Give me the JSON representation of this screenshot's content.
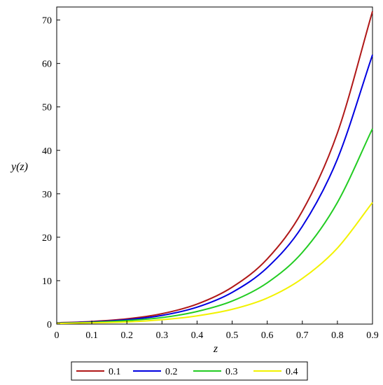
{
  "chart_data": {
    "type": "line",
    "xlabel": "z",
    "ylabel": "y(z)",
    "xlim": [
      0,
      0.9
    ],
    "ylim": [
      0,
      73
    ],
    "x_ticks": [
      "0",
      "0.1",
      "0.2",
      "0.3",
      "0.4",
      "0.5",
      "0.6",
      "0.7",
      "0.8",
      "0.9"
    ],
    "y_ticks": [
      "0",
      "10",
      "20",
      "30",
      "40",
      "50",
      "60",
      "70"
    ],
    "x": [
      0,
      0.1,
      0.2,
      0.3,
      0.4,
      0.5,
      0.6,
      0.7,
      0.8,
      0.9
    ],
    "series": [
      {
        "name": "0.1",
        "color": "#b01818",
        "values": [
          0.3,
          0.6,
          1.2,
          2.4,
          4.6,
          8.5,
          15,
          26,
          44,
          72
        ]
      },
      {
        "name": "0.2",
        "color": "#0000e0",
        "values": [
          0.25,
          0.5,
          1.0,
          2.0,
          3.9,
          7.3,
          13,
          22.5,
          38,
          62
        ]
      },
      {
        "name": "0.3",
        "color": "#22cc22",
        "values": [
          0.2,
          0.4,
          0.8,
          1.5,
          2.9,
          5.3,
          9.5,
          16.5,
          28,
          45
        ]
      },
      {
        "name": "0.4",
        "color": "#f2f200",
        "values": [
          0.15,
          0.3,
          0.5,
          1.0,
          1.9,
          3.4,
          6.0,
          10.5,
          17.5,
          28
        ]
      }
    ],
    "grid": false,
    "legend": "bottom"
  }
}
